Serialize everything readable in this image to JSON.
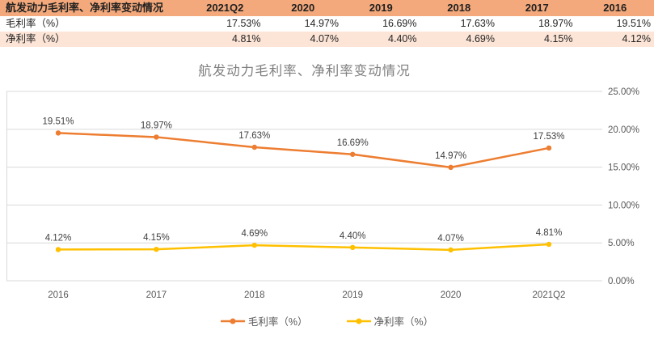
{
  "table": {
    "header": [
      "航发动力毛利率、净利率变动情况",
      "2021Q2",
      "2020",
      "2019",
      "2018",
      "2017",
      "2016"
    ],
    "rows": [
      {
        "label": "毛利率（%）",
        "values": [
          "17.53%",
          "14.97%",
          "16.69%",
          "17.63%",
          "18.97%",
          "19.51%"
        ]
      },
      {
        "label": "净利率（%）",
        "values": [
          "4.81%",
          "4.07%",
          "4.40%",
          "4.69%",
          "4.15%",
          "4.12%"
        ]
      }
    ],
    "header_bg": "#F4A97C",
    "alt_row_bg": "#FCE4D6"
  },
  "chart_data": {
    "type": "line",
    "title": "航发动力毛利率、净利率变动情况",
    "categories": [
      "2016",
      "2017",
      "2018",
      "2019",
      "2020",
      "2021Q2"
    ],
    "series": [
      {
        "name": "毛利率（%）",
        "color": "#ED7D31",
        "values": [
          19.51,
          18.97,
          17.63,
          16.69,
          14.97,
          17.53
        ],
        "labels": [
          "19.51%",
          "18.97%",
          "17.63%",
          "16.69%",
          "14.97%",
          "17.53%"
        ]
      },
      {
        "name": "净利率（%）",
        "color": "#FFC000",
        "values": [
          4.12,
          4.15,
          4.69,
          4.4,
          4.07,
          4.81
        ],
        "labels": [
          "4.12%",
          "4.15%",
          "4.69%",
          "4.40%",
          "4.07%",
          "4.81%"
        ]
      }
    ],
    "y_axis": {
      "min": 0,
      "max": 25,
      "step": 5,
      "side": "right",
      "tick_labels": [
        "0.00%",
        "5.00%",
        "10.00%",
        "15.00%",
        "20.00%",
        "25.00%"
      ]
    },
    "grid": true,
    "gridline_color": "#D9D9D9",
    "title_color": "#7F7F7F",
    "axis_text_color": "#595959",
    "data_label_color": "#404040",
    "legend_position": "bottom"
  }
}
